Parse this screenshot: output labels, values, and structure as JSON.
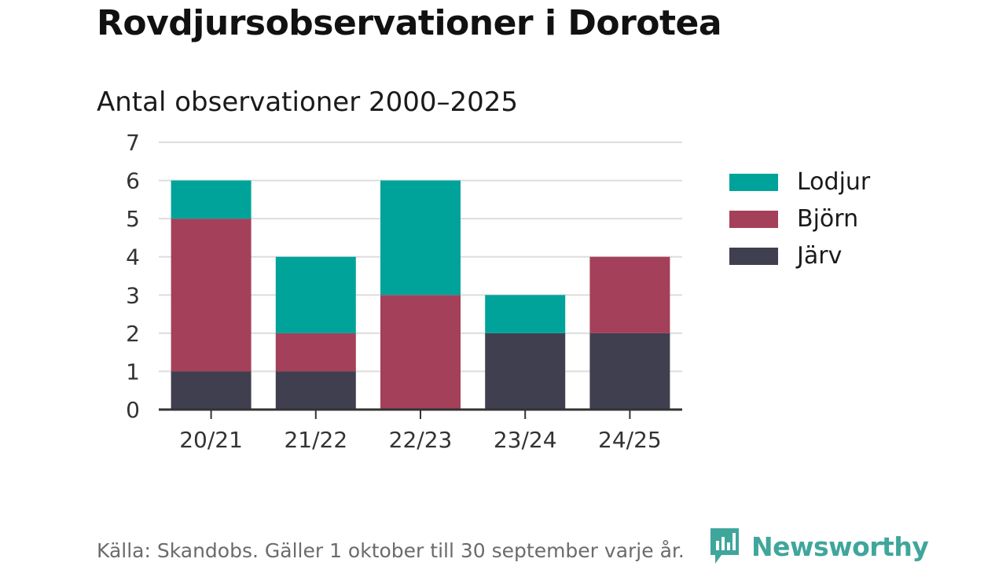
{
  "header": {
    "title": "Rovdjursobservationer i Dorotea",
    "subtitle": "Antal observationer 2000–2025"
  },
  "chart_data": {
    "type": "bar",
    "stacked": true,
    "title": "Rovdjursobservationer i Dorotea",
    "subtitle": "Antal observationer 2000–2025",
    "categories": [
      "20/21",
      "21/22",
      "22/23",
      "23/24",
      "24/25"
    ],
    "series": [
      {
        "name": "Järv",
        "color": "#403f4f",
        "values": [
          1,
          1,
          0,
          2,
          2
        ]
      },
      {
        "name": "Björn",
        "color": "#a4405a",
        "values": [
          4,
          1,
          3,
          0,
          2
        ]
      },
      {
        "name": "Lodjur",
        "color": "#00a39a",
        "values": [
          1,
          2,
          3,
          1,
          0
        ]
      }
    ],
    "y_ticks": [
      0,
      1,
      2,
      3,
      4,
      5,
      6,
      7
    ],
    "ylim": [
      0,
      7
    ],
    "grid": true,
    "legend_position": "right",
    "legend_order": [
      "Lodjur",
      "Björn",
      "Järv"
    ],
    "xlabel": "",
    "ylabel": ""
  },
  "footer": {
    "source": "Källa: Skandobs. Gäller 1 oktober till 30 september varje år.",
    "brand": "Newsworthy",
    "brand_color": "#3fa69c"
  }
}
